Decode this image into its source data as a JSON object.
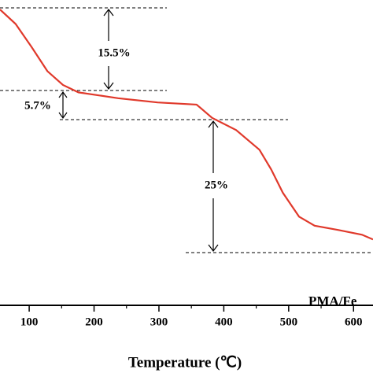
{
  "chart_data": {
    "type": "line",
    "x": [
      55,
      79,
      104,
      128,
      152,
      176,
      237,
      298,
      358,
      382,
      419,
      455,
      473,
      491,
      516,
      540,
      576,
      613,
      630
    ],
    "series": [
      {
        "name": "PMA/Fe",
        "color": "#e0392b",
        "values": [
          99.7,
          97.0,
          92.6,
          88.1,
          85.5,
          84.1,
          83.0,
          82.2,
          81.8,
          79.3,
          77.0,
          73.3,
          69.6,
          65.2,
          60.7,
          59.0,
          58.2,
          57.3,
          56.4
        ]
      }
    ],
    "xlim": [
      55,
      630
    ],
    "ylim": [
      44,
      101.5
    ],
    "xticks": [
      100,
      200,
      300,
      400,
      500,
      600
    ],
    "x_label": "Temperature (℃)",
    "annotations": [
      "15.5%",
      "5.7%",
      "25%"
    ]
  }
}
